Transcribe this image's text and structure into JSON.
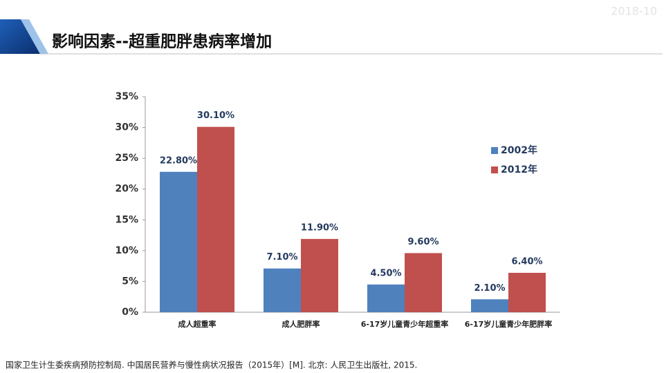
{
  "header": {
    "date": "2018-10",
    "title": "影响因素--超重肥胖患病率增加"
  },
  "chart_data": {
    "type": "bar",
    "categories": [
      "成人超重率",
      "成人肥胖率",
      "6-17岁儿童青少年超重率",
      "6-17岁儿童青少年肥胖率"
    ],
    "series": [
      {
        "name": "2002年",
        "color": "#4f81bd",
        "values": [
          22.8,
          7.1,
          4.5,
          2.1
        ],
        "value_labels": [
          "22.80%",
          "7.10%",
          "4.50%",
          "2.10%"
        ]
      },
      {
        "name": "2012年",
        "color": "#c0504d",
        "values": [
          30.1,
          11.9,
          9.6,
          6.4
        ],
        "value_labels": [
          "30.10%",
          "11.90%",
          "9.60%",
          "6.40%"
        ]
      }
    ],
    "ylim": [
      0,
      35
    ],
    "yticks": [
      {
        "value": 0,
        "label": "0%"
      },
      {
        "value": 5,
        "label": "5%"
      },
      {
        "value": 10,
        "label": "10%"
      },
      {
        "value": 15,
        "label": "15%"
      },
      {
        "value": 20,
        "label": "20%"
      },
      {
        "value": 25,
        "label": "25%"
      },
      {
        "value": 30,
        "label": "30%"
      },
      {
        "value": 35,
        "label": "35%"
      }
    ],
    "grid": false,
    "legend": "right"
  },
  "footnote": "国家卫生计生委疾病预防控制局. 中国居民营养与慢性病状况报告（2015年）[M]. 北京: 人民卫生出版社, 2015."
}
